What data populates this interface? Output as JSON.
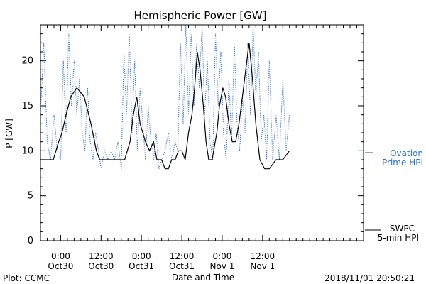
{
  "chart_data": {
    "type": "line",
    "title": "Hemispheric Power [GW]",
    "xlabel": "Date and Time",
    "ylabel": "P [GW]",
    "xlim": [
      -3,
      45
    ],
    "ylim": [
      0,
      24
    ],
    "x_ticks": [
      {
        "x": 0,
        "line1": "0:00",
        "line2": "Oct30"
      },
      {
        "x": 6,
        "line1": "12:00",
        "line2": "Oct30"
      },
      {
        "x": 12,
        "line1": "0:00",
        "line2": "Oct31"
      },
      {
        "x": 18,
        "line1": "12:00",
        "line2": "Oct31"
      },
      {
        "x": 24,
        "line1": "0:00",
        "line2": "Nov 1"
      },
      {
        "x": 30,
        "line1": "12:00",
        "line2": "Nov 1"
      }
    ],
    "y_ticks": [
      0,
      5,
      10,
      15,
      20
    ],
    "series": [
      {
        "name": "SWPC 5-min HPI",
        "color": "#000000",
        "style": "solid",
        "x": [
          -3,
          -1.1,
          -0.7,
          -0.3,
          0.2,
          0.8,
          1.5,
          2.4,
          3.5,
          4.5,
          5.3,
          5.8,
          6.3,
          7,
          8,
          9.5,
          10.3,
          10.8,
          11.3,
          11.8,
          12.6,
          13.2,
          13.8,
          14.3,
          15,
          15.5,
          16,
          16.5,
          17,
          17.5,
          18,
          18.5,
          19,
          19.5,
          19.9,
          20.3,
          20.7,
          21.2,
          21.6,
          22,
          22.5,
          23.2,
          23.6,
          24.1,
          24.5,
          25,
          25.5,
          26,
          26.5,
          27,
          27.5,
          28,
          28.5,
          29,
          29.6,
          30.3,
          31,
          32,
          33,
          34
        ],
        "y": [
          9,
          9,
          10,
          11,
          12,
          14,
          16,
          17,
          16,
          13,
          10,
          9,
          9,
          9,
          9,
          9,
          11,
          14,
          16,
          13,
          11,
          10,
          11,
          9,
          9,
          8,
          8,
          9,
          9,
          10,
          10,
          9,
          12,
          14,
          17,
          21,
          19,
          15,
          11,
          9,
          9,
          12,
          15,
          17,
          16,
          13,
          11,
          11,
          13,
          16,
          19,
          22,
          18,
          13,
          9,
          8,
          8,
          9,
          9,
          10
        ]
      },
      {
        "name": "Ovation Prime HPI",
        "color": "#2b6fd6",
        "style": "dotted",
        "x": [
          -3,
          -2.5,
          -2,
          -1.5,
          -1,
          -0.5,
          0,
          0.4,
          0.8,
          1.2,
          1.6,
          2,
          2.4,
          2.8,
          3.2,
          3.6,
          4,
          4.4,
          4.8,
          5.2,
          5.6,
          6,
          6.5,
          7,
          7.5,
          8,
          8.5,
          9,
          9.4,
          9.8,
          10.2,
          10.6,
          11,
          11.4,
          11.8,
          12.2,
          12.6,
          13,
          13.4,
          13.8,
          14.2,
          14.6,
          15,
          15.5,
          16,
          16.5,
          17,
          17.4,
          17.8,
          18.2,
          18.6,
          19,
          19.4,
          19.8,
          20.2,
          20.6,
          21,
          21.4,
          21.8,
          22.2,
          22.6,
          23,
          23.4,
          23.8,
          24.2,
          24.6,
          25,
          25.4,
          25.8,
          26.2,
          26.6,
          27,
          27.4,
          27.8,
          28.2,
          28.6,
          29,
          29.4,
          29.8,
          30.2,
          30.6,
          31,
          31.5,
          32,
          32.5,
          33,
          33.5,
          34
        ],
        "y": [
          14,
          22,
          11,
          9,
          14,
          10,
          9,
          20,
          12,
          23,
          15,
          20,
          14,
          18,
          12,
          10,
          17,
          11,
          9,
          12,
          10,
          8,
          10,
          9,
          10,
          9,
          11,
          8,
          21,
          14,
          23,
          12,
          20,
          10,
          17,
          13,
          9,
          15,
          11,
          9,
          12,
          8,
          9,
          10,
          12,
          9,
          11,
          10,
          22,
          13,
          24,
          14,
          23,
          15,
          22,
          17,
          24,
          14,
          20,
          11,
          9,
          23,
          15,
          21,
          12,
          9,
          18,
          11,
          22,
          13,
          10,
          16,
          12,
          22,
          14,
          24,
          16,
          21,
          11,
          14,
          9,
          20,
          9,
          14,
          9,
          18,
          10,
          14
        ]
      }
    ],
    "legend": {
      "placement": "right",
      "ovation": {
        "line1": "Ovation",
        "line2": "Prime HPI"
      },
      "swpc": {
        "line1": "SWPC",
        "line2": "5-min HPI"
      }
    }
  },
  "footer": {
    "plot_credit": "Plot: CCMC",
    "timestamp": "2018/11/01 20:50:21"
  }
}
